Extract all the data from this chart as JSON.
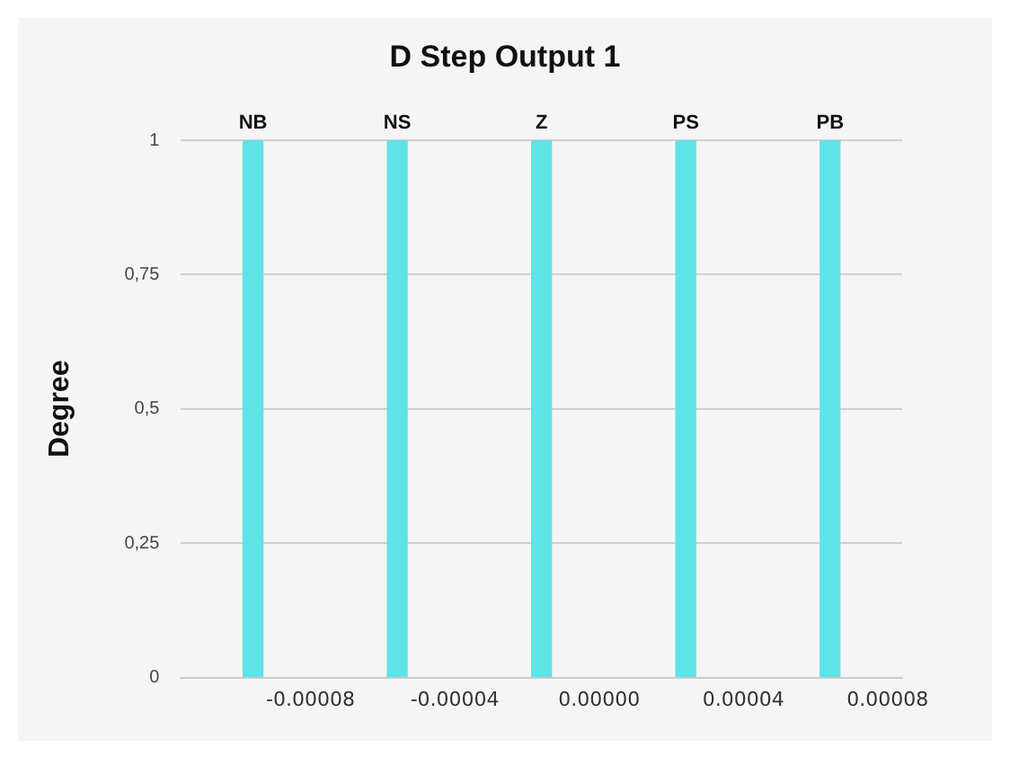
{
  "chart_data": {
    "type": "bar",
    "title": "D Step Output 1",
    "ylabel": "Degree",
    "categories": [
      "-0.00008",
      "-0.00004",
      "0.00000",
      "0.00004",
      "0.00008"
    ],
    "values": [
      1,
      1,
      1,
      1,
      1
    ],
    "color": "#5ee3e6",
    "ylim": [
      0,
      1
    ],
    "yticks": [
      0,
      {
        "value": 0.25,
        "label": "0,25"
      },
      {
        "value": 0.5,
        "label": "0,5"
      },
      {
        "value": 0.75,
        "label": "0,75"
      },
      1
    ],
    "grid": "y",
    "legend": false,
    "value_labels": [
      "NB",
      "NS",
      "Z",
      "PS",
      "PB"
    ]
  }
}
